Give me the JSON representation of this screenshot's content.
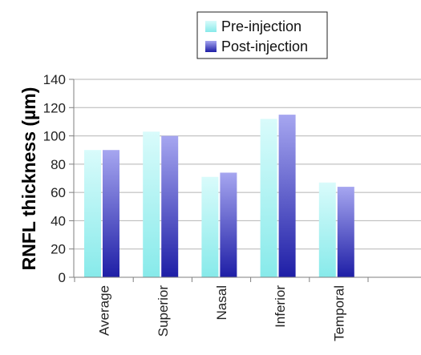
{
  "chart_data": {
    "type": "bar",
    "categories": [
      "Average",
      "Superior",
      "Nasal",
      "Inferior",
      "Temporal",
      ""
    ],
    "series": [
      {
        "name": "Pre-injection",
        "values": [
          90,
          103,
          71,
          112,
          67,
          null
        ]
      },
      {
        "name": "Post-injection",
        "values": [
          90,
          100,
          74,
          115,
          64,
          null
        ]
      }
    ],
    "ylabel": "RNFL thickness (µm)",
    "xlabel": "",
    "ylim": [
      0,
      140
    ],
    "yticks": [
      0,
      20,
      40,
      60,
      80,
      100,
      120,
      140
    ],
    "grid": true,
    "legend_position": "top-right",
    "colors": {
      "pre_top": "#d9fbfb",
      "pre_bottom": "#87eaea",
      "post_top": "#a6a6f0",
      "post_bottom": "#1e1ea6",
      "grid": "#b5b5b5",
      "axis": "#7f7f7f"
    }
  }
}
